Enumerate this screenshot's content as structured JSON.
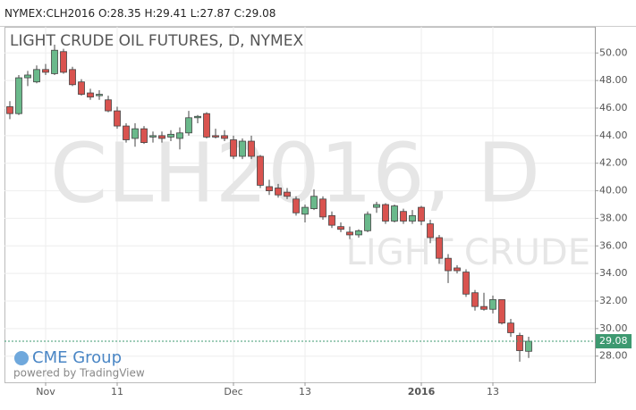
{
  "chart_data": {
    "type": "candlestick",
    "symbol": "NYMEX:CLH2016",
    "ohlc_labels": [
      "O:",
      "H:",
      "L:",
      "C:"
    ],
    "title": "LIGHT CRUDE OIL FUTURES, D, NYMEX",
    "watermark": "CLH2016, D",
    "watermark_sub": "LIGHT CRUDE",
    "logo": "CME Group",
    "powered_by": "powered by TradingView",
    "up_color": "#6ab98b",
    "down_color": "#d9534f",
    "categories": [
      null,
      null,
      null,
      null,
      "Nov",
      null,
      null,
      null,
      null,
      null,
      null,
      null,
      "11",
      null,
      null,
      null,
      null,
      null,
      null,
      null,
      null,
      null,
      null,
      null,
      null,
      "Dec",
      null,
      null,
      null,
      null,
      null,
      null,
      null,
      "13",
      null,
      null,
      null,
      null,
      null,
      null,
      null,
      null,
      null,
      null,
      null,
      null,
      "2016",
      null,
      null,
      null,
      null,
      null,
      null,
      null,
      "13",
      null,
      null,
      null,
      null
    ],
    "open": [
      46.1,
      45.6,
      48.2,
      47.9,
      48.8,
      48.5,
      50.1,
      48.8,
      47.9,
      47.1,
      46.9,
      46.6,
      45.8,
      44.7,
      43.8,
      44.5,
      43.9,
      44.0,
      43.9,
      43.8,
      44.2,
      45.3,
      45.6,
      44.0,
      44.0,
      43.7,
      42.5,
      43.6,
      42.5,
      40.3,
      40.2,
      39.9,
      39.4,
      38.3,
      38.7,
      39.4,
      38.2,
      37.4,
      37.0,
      36.8,
      37.1,
      38.8,
      39.0,
      37.8,
      38.5,
      37.8,
      38.8,
      37.6,
      36.6,
      35.1,
      34.4,
      34.1,
      32.6,
      31.6,
      31.4,
      32.1,
      30.4,
      29.5,
      28.35
    ],
    "high": [
      46.5,
      48.4,
      48.7,
      49.1,
      49.2,
      50.6,
      50.3,
      49.0,
      48.1,
      47.4,
      47.3,
      46.9,
      46.1,
      44.9,
      44.9,
      44.7,
      44.3,
      44.3,
      44.4,
      44.6,
      45.8,
      45.5,
      45.7,
      44.5,
      44.4,
      44.0,
      43.8,
      44.0,
      42.6,
      40.8,
      40.5,
      40.2,
      39.6,
      39.0,
      40.1,
      39.6,
      38.5,
      37.7,
      37.4,
      37.2,
      38.5,
      39.2,
      39.1,
      39.0,
      38.7,
      38.6,
      38.9,
      37.9,
      36.8,
      35.4,
      34.6,
      34.3,
      32.8,
      32.6,
      32.4,
      32.1,
      30.7,
      29.7,
      29.41
    ],
    "low": [
      45.2,
      45.5,
      47.6,
      47.8,
      48.4,
      48.4,
      48.5,
      47.6,
      46.9,
      46.6,
      46.6,
      45.7,
      44.5,
      43.5,
      43.2,
      43.4,
      43.5,
      43.5,
      43.6,
      43.0,
      44.0,
      44.9,
      43.8,
      43.8,
      43.6,
      42.3,
      42.3,
      42.3,
      40.2,
      39.7,
      39.5,
      39.4,
      38.2,
      37.7,
      38.6,
      37.9,
      37.3,
      37.0,
      36.5,
      36.6,
      37.0,
      38.4,
      37.6,
      37.7,
      37.6,
      37.6,
      37.5,
      36.2,
      34.7,
      33.3,
      34.0,
      32.3,
      31.3,
      31.3,
      31.1,
      30.3,
      29.4,
      27.6,
      27.87
    ],
    "close": [
      45.6,
      48.2,
      48.4,
      48.8,
      48.6,
      50.2,
      48.6,
      47.7,
      47.0,
      46.8,
      47.0,
      45.8,
      44.7,
      43.7,
      44.5,
      43.5,
      44.0,
      43.8,
      44.1,
      44.2,
      45.3,
      45.4,
      43.9,
      43.9,
      43.8,
      42.5,
      43.6,
      42.5,
      40.4,
      40.0,
      39.7,
      39.6,
      38.4,
      38.8,
      39.6,
      38.1,
      37.5,
      37.2,
      36.8,
      37.1,
      38.3,
      39.0,
      37.8,
      38.9,
      37.8,
      38.2,
      37.8,
      36.6,
      35.1,
      34.2,
      34.2,
      32.5,
      31.6,
      31.4,
      32.1,
      30.4,
      29.7,
      28.4,
      29.08
    ],
    "ylim": [
      26.1,
      51.9
    ],
    "yticks": [
      {
        "value": 28,
        "label": "28.00"
      },
      {
        "value": 30,
        "label": "30.00"
      },
      {
        "value": 32,
        "label": "32.00"
      },
      {
        "value": 34,
        "label": "34.00"
      },
      {
        "value": 36,
        "label": "36.00"
      },
      {
        "value": 38,
        "label": "38.00"
      },
      {
        "value": 40,
        "label": "40.00"
      },
      {
        "value": 42,
        "label": "42.00"
      },
      {
        "value": 44,
        "label": "44.00"
      },
      {
        "value": 46,
        "label": "46.00"
      },
      {
        "value": 48,
        "label": "48.00"
      },
      {
        "value": 50,
        "label": "50.00"
      }
    ],
    "grid": true
  }
}
